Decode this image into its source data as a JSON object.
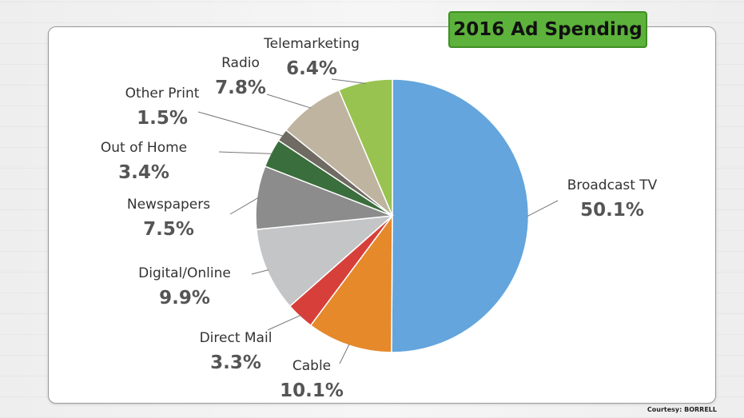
{
  "chart_data": {
    "type": "pie",
    "title": "2016 Ad Spending",
    "slices": [
      {
        "label": "Broadcast TV",
        "value": 50.1,
        "display": "50.1%",
        "color": "#63a5dc"
      },
      {
        "label": "Cable",
        "value": 10.1,
        "display": "10.1%",
        "color": "#e5892b"
      },
      {
        "label": "Direct Mail",
        "value": 3.3,
        "display": "3.3%",
        "color": "#d7403a"
      },
      {
        "label": "Digital/Online",
        "value": 9.9,
        "display": "9.9%",
        "color": "#c4c5c7"
      },
      {
        "label": "Newspapers",
        "value": 7.5,
        "display": "7.5%",
        "color": "#8c8c8c"
      },
      {
        "label": "Out of Home",
        "value": 3.4,
        "display": "3.4%",
        "color": "#3a6e3c"
      },
      {
        "label": "Other Print",
        "value": 1.5,
        "display": "1.5%",
        "color": "#6f6a62"
      },
      {
        "label": "Radio",
        "value": 7.8,
        "display": "7.8%",
        "color": "#bfb4a0"
      },
      {
        "label": "Telemarketing",
        "value": 6.4,
        "display": "6.4%",
        "color": "#98c350"
      }
    ]
  },
  "courtesy": "Courtesy: BORRELL"
}
